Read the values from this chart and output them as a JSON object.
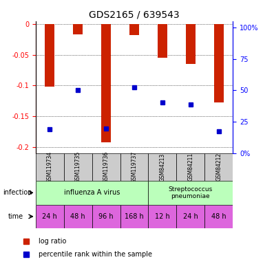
{
  "title": "GDS2165 / 639543",
  "samples": [
    "GSM119734",
    "GSM119735",
    "GSM119736",
    "GSM119737",
    "GSM84213",
    "GSM84211",
    "GSM84212"
  ],
  "log_ratios": [
    -0.102,
    -0.017,
    -0.192,
    -0.018,
    -0.055,
    -0.065,
    -0.128
  ],
  "percentile_ranks": [
    0.18,
    0.48,
    0.185,
    0.5,
    0.385,
    0.37,
    0.165
  ],
  "bar_color": "#cc2200",
  "percentile_color": "#0000cc",
  "ylim_left": [
    -0.21,
    0.005
  ],
  "ylim_right": [
    0,
    105
  ],
  "yticks_left": [
    0,
    -0.05,
    -0.1,
    -0.15,
    -0.2
  ],
  "yticks_right": [
    0,
    25,
    50,
    75,
    100
  ],
  "ytick_labels_left": [
    "0",
    "-0.05",
    "-0.1",
    "-0.15",
    "-0.2"
  ],
  "ytick_labels_right": [
    "0%",
    "25",
    "50",
    "75",
    "100%"
  ],
  "infection_groups": [
    {
      "label": "influenza A virus",
      "start": 0,
      "end": 4,
      "color": "#aaffaa"
    },
    {
      "label": "Streptococcus\npneumoniae",
      "start": 4,
      "end": 7,
      "color": "#aaffaa"
    }
  ],
  "time_labels": [
    "24 h",
    "48 h",
    "96 h",
    "168 h",
    "12 h",
    "24 h",
    "48 h"
  ],
  "time_colors": [
    "#ee66ee",
    "#ee66ee",
    "#ee66ee",
    "#ee66ee",
    "#ee66ee",
    "#ee66ee",
    "#ee66ee"
  ],
  "background_color": "#ffffff",
  "sample_box_color": "#cccccc",
  "legend_red": "log ratio",
  "legend_blue": "percentile rank within the sample"
}
